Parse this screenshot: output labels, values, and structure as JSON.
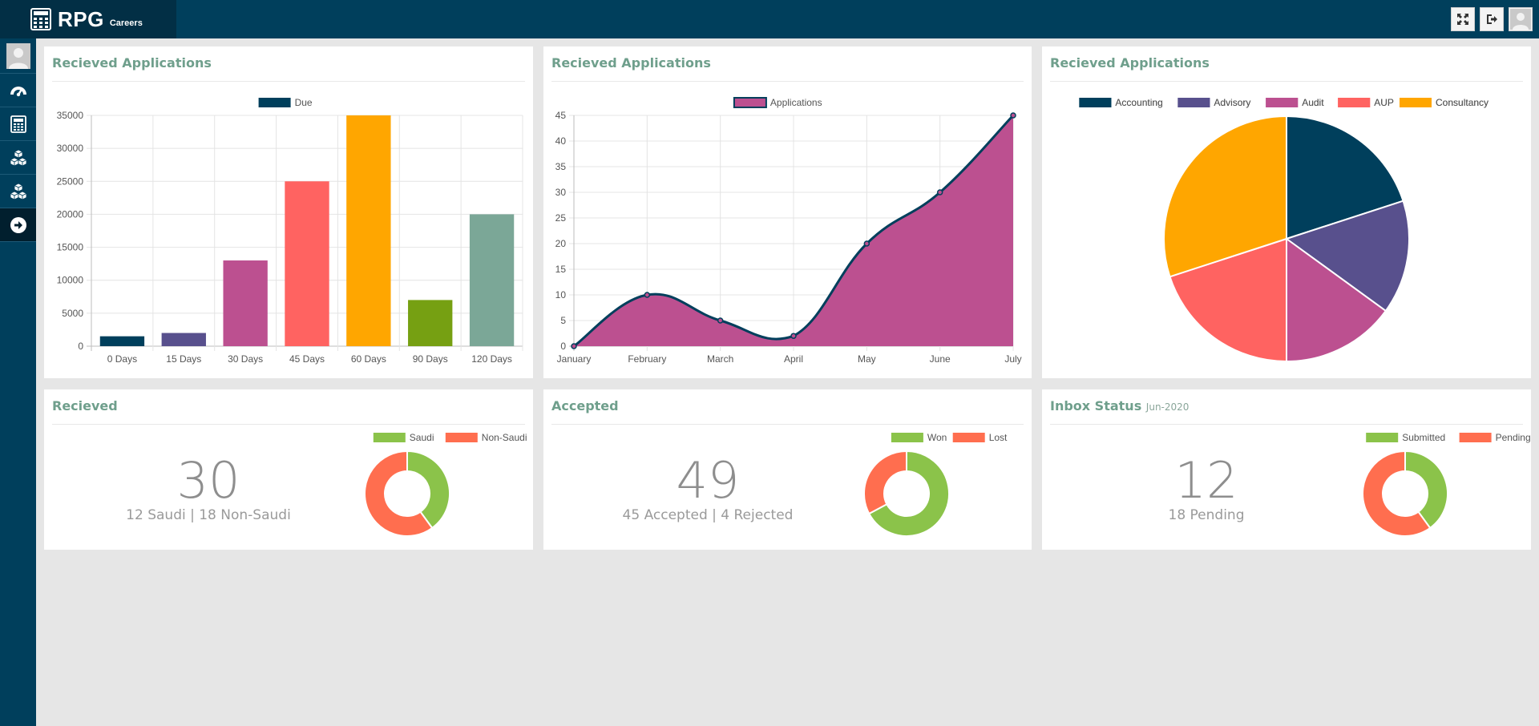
{
  "app": {
    "name": "RPG",
    "subtitle": "Careers"
  },
  "topbar": {
    "buttons": [
      "fullscreen-icon",
      "logout-icon",
      "user-avatar"
    ]
  },
  "sidebar": {
    "items": [
      "user-avatar",
      "dashboard-icon",
      "calculator-icon",
      "cubes-icon",
      "cubes-icon",
      "arrow-right-icon"
    ]
  },
  "colors": {
    "topbar": "#003f5c",
    "title": "#6f9f8c",
    "accounting": "#003f5c",
    "advisory": "#58508d",
    "audit": "#bc5090",
    "aup": "#ff6361",
    "consultancy": "#ffa600",
    "green": "#8bc34a",
    "orange": "#ff6e4f",
    "olive": "#76a012",
    "teal": "#7ba797"
  },
  "cards": {
    "bar": {
      "title": "Recieved Applications"
    },
    "line": {
      "title": "Recieved Applications"
    },
    "pie": {
      "title": "Recieved Applications"
    },
    "recieved": {
      "title": "Recieved",
      "value": "30",
      "detail": "12 Saudi | 18 Non-Saudi"
    },
    "accepted": {
      "title": "Accepted",
      "value": "49",
      "detail": "45 Accepted | 4 Rejected"
    },
    "inbox": {
      "title": "Inbox Status",
      "subtitle": "Jun-2020",
      "value": "12",
      "detail": "18 Pending"
    }
  },
  "chart_data": [
    {
      "type": "bar",
      "legend": [
        "Due"
      ],
      "categories": [
        "0 Days",
        "15 Days",
        "30 Days",
        "45 Days",
        "60 Days",
        "90 Days",
        "120 Days"
      ],
      "values": [
        1500,
        2000,
        13000,
        25000,
        35000,
        7000,
        20000
      ],
      "bar_colors": [
        "#003f5c",
        "#58508d",
        "#bc5090",
        "#ff6361",
        "#ffa600",
        "#76a012",
        "#7ba797"
      ],
      "ylim": [
        0,
        35000
      ],
      "yticks": [
        0,
        5000,
        10000,
        15000,
        20000,
        25000,
        30000,
        35000
      ],
      "grid": true
    },
    {
      "type": "area",
      "legend": [
        "Applications"
      ],
      "categories": [
        "January",
        "February",
        "March",
        "April",
        "May",
        "June",
        "July"
      ],
      "values": [
        0,
        10,
        5,
        2,
        20,
        30,
        45
      ],
      "ylim": [
        0,
        45
      ],
      "yticks": [
        0,
        5,
        10,
        15,
        20,
        25,
        30,
        35,
        40,
        45
      ],
      "fill": "#bc5090",
      "line": "#003f5c",
      "grid": true
    },
    {
      "type": "pie",
      "labels": [
        "Accounting",
        "Advisory",
        "Audit",
        "AUP",
        "Consultancy"
      ],
      "values": [
        20,
        15,
        15,
        20,
        30
      ],
      "colors": [
        "#003f5c",
        "#58508d",
        "#bc5090",
        "#ff6361",
        "#ffa600"
      ]
    },
    {
      "type": "pie",
      "subtype": "doughnut",
      "labels": [
        "Saudi",
        "Non-Saudi"
      ],
      "values": [
        12,
        18
      ],
      "colors": [
        "#8bc34a",
        "#ff6e4f"
      ]
    },
    {
      "type": "pie",
      "subtype": "doughnut",
      "labels": [
        "Won",
        "Lost"
      ],
      "values": [
        45,
        22
      ],
      "colors": [
        "#8bc34a",
        "#ff6e4f"
      ]
    },
    {
      "type": "pie",
      "subtype": "doughnut",
      "labels": [
        "Submitted",
        "Pending"
      ],
      "values": [
        12,
        18
      ],
      "colors": [
        "#8bc34a",
        "#ff6e4f"
      ]
    }
  ]
}
